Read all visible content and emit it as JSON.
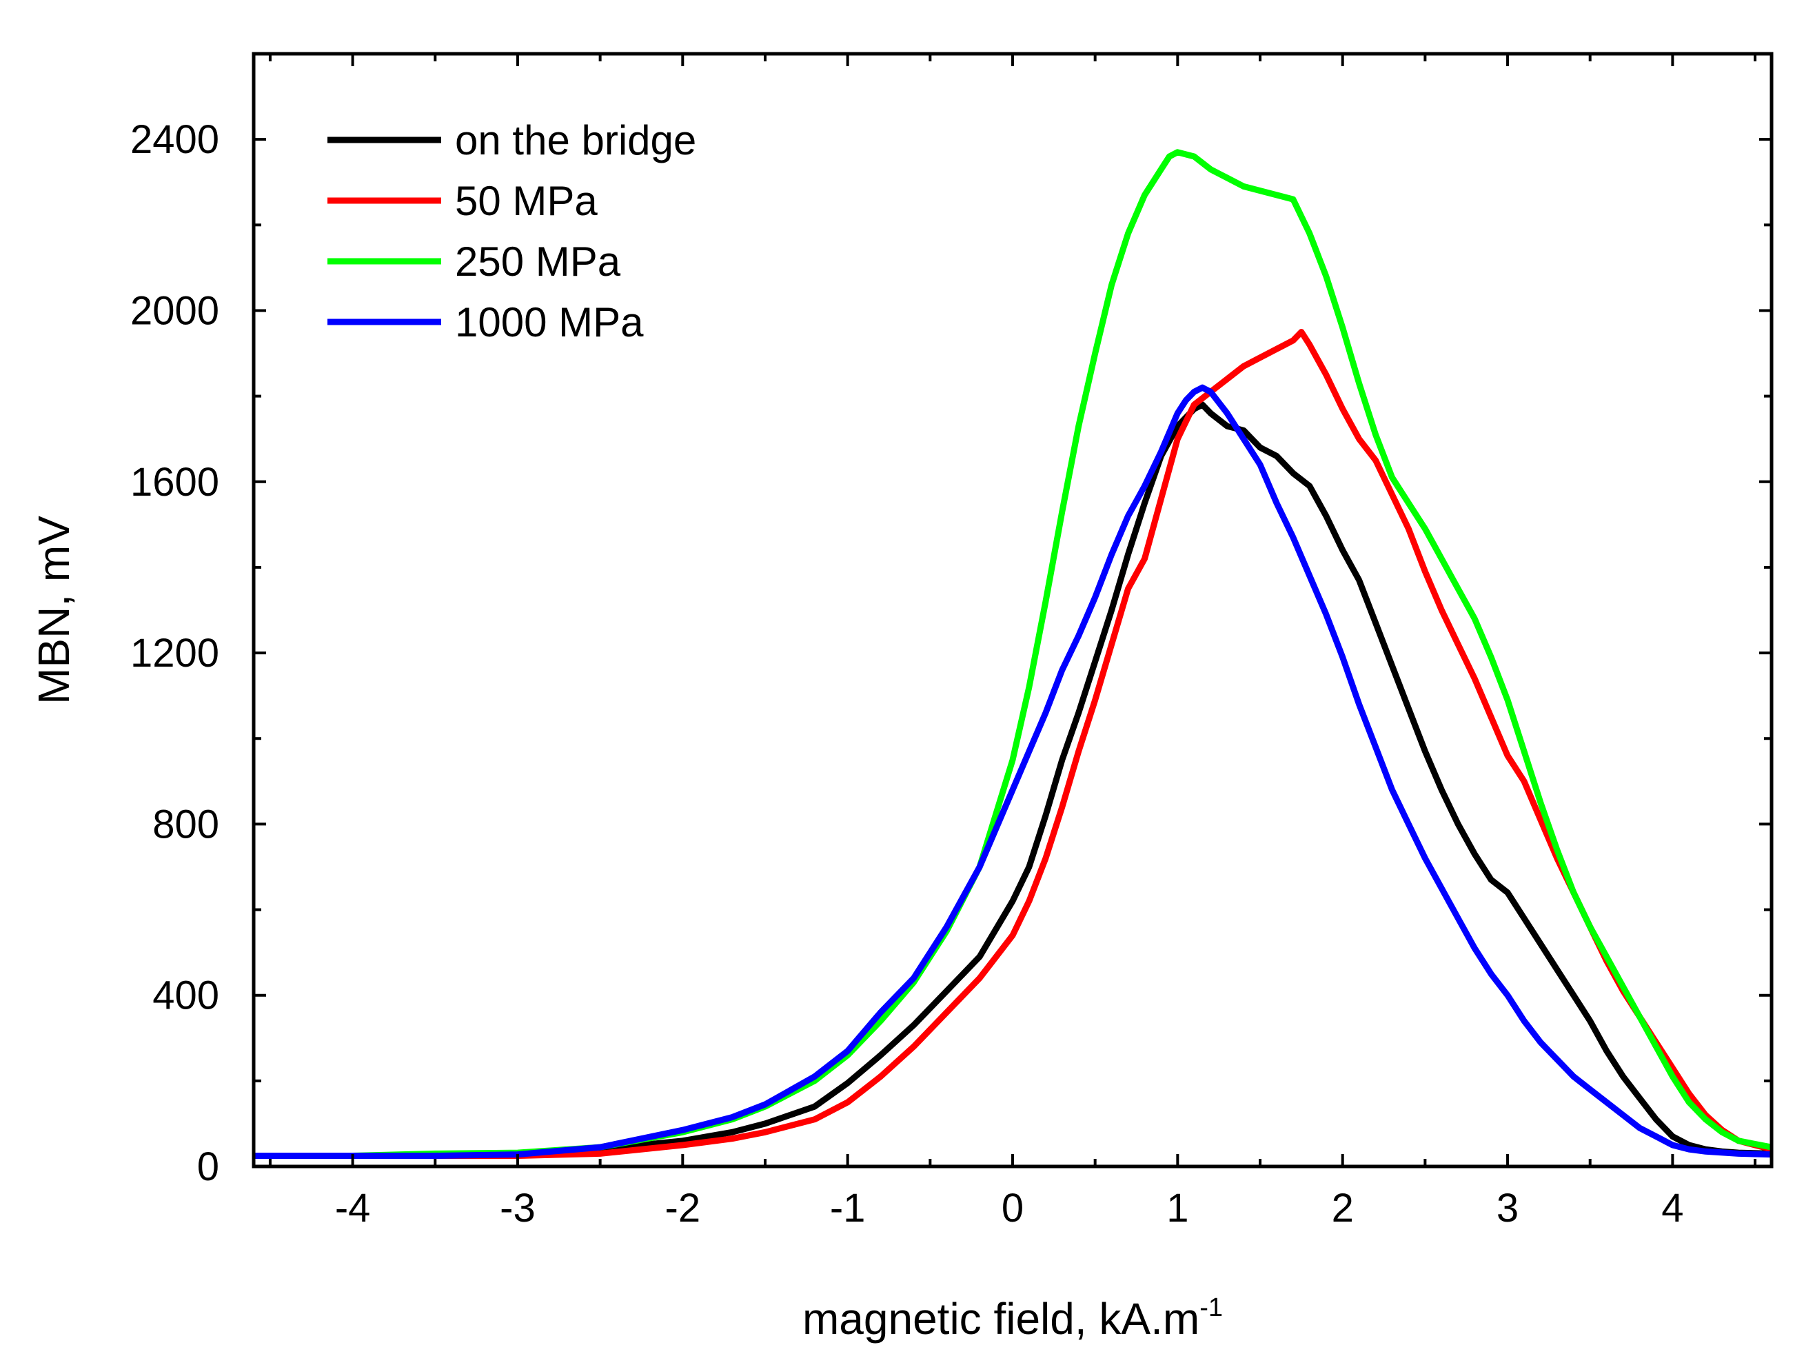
{
  "chart_data": {
    "type": "line",
    "title": "",
    "xlabel": "magnetic field, kA.m",
    "xlabel_superscript": "-1",
    "ylabel": "MBN, mV",
    "xlim": [
      -4.6,
      4.6
    ],
    "ylim": [
      0,
      2600
    ],
    "x_ticks": [
      -4,
      -3,
      -2,
      -1,
      0,
      1,
      2,
      3,
      4
    ],
    "x_tick_labels": [
      "-4",
      "-3",
      "-2",
      "-1",
      "0",
      "1",
      "2",
      "3",
      "4"
    ],
    "y_ticks": [
      0,
      400,
      800,
      1200,
      1600,
      2000,
      2400
    ],
    "y_tick_labels": [
      "0",
      "400",
      "800",
      "1200",
      "1600",
      "2000",
      "2400"
    ],
    "grid": false,
    "legend_position": "top-left",
    "series": [
      {
        "name": "on the bridge",
        "color": "#000000",
        "x": [
          -4.6,
          -4.0,
          -3.5,
          -3.0,
          -2.5,
          -2.0,
          -1.7,
          -1.5,
          -1.2,
          -1.0,
          -0.8,
          -0.6,
          -0.4,
          -0.2,
          0.0,
          0.1,
          0.2,
          0.3,
          0.4,
          0.5,
          0.6,
          0.7,
          0.8,
          0.9,
          1.0,
          1.1,
          1.15,
          1.2,
          1.3,
          1.4,
          1.5,
          1.6,
          1.7,
          1.8,
          1.9,
          2.0,
          2.1,
          2.2,
          2.3,
          2.4,
          2.5,
          2.6,
          2.7,
          2.8,
          2.9,
          3.0,
          3.1,
          3.2,
          3.3,
          3.4,
          3.5,
          3.6,
          3.7,
          3.8,
          3.9,
          4.0,
          4.1,
          4.2,
          4.3,
          4.4,
          4.6
        ],
        "values": [
          25,
          25,
          25,
          28,
          40,
          60,
          80,
          100,
          140,
          195,
          260,
          330,
          410,
          490,
          620,
          700,
          820,
          950,
          1060,
          1180,
          1300,
          1430,
          1550,
          1660,
          1730,
          1770,
          1780,
          1760,
          1730,
          1720,
          1680,
          1660,
          1620,
          1590,
          1520,
          1440,
          1370,
          1270,
          1170,
          1070,
          970,
          880,
          800,
          730,
          670,
          640,
          580,
          520,
          460,
          400,
          340,
          270,
          210,
          160,
          110,
          70,
          50,
          40,
          35,
          32,
          30
        ]
      },
      {
        "name": "50 MPa",
        "color": "#ff0000",
        "x": [
          -4.6,
          -4.0,
          -3.5,
          -3.0,
          -2.5,
          -2.0,
          -1.7,
          -1.5,
          -1.2,
          -1.0,
          -0.8,
          -0.6,
          -0.4,
          -0.2,
          0.0,
          0.1,
          0.2,
          0.3,
          0.4,
          0.5,
          0.6,
          0.7,
          0.8,
          0.9,
          1.0,
          1.1,
          1.2,
          1.3,
          1.4,
          1.5,
          1.6,
          1.7,
          1.75,
          1.8,
          1.9,
          2.0,
          2.1,
          2.2,
          2.3,
          2.4,
          2.5,
          2.6,
          2.7,
          2.8,
          2.9,
          3.0,
          3.1,
          3.2,
          3.3,
          3.4,
          3.5,
          3.6,
          3.7,
          3.8,
          3.9,
          4.0,
          4.1,
          4.2,
          4.3,
          4.4,
          4.6
        ],
        "values": [
          25,
          25,
          25,
          25,
          30,
          50,
          65,
          80,
          110,
          150,
          210,
          280,
          360,
          440,
          540,
          620,
          720,
          840,
          970,
          1090,
          1220,
          1350,
          1420,
          1560,
          1700,
          1780,
          1810,
          1840,
          1870,
          1890,
          1910,
          1930,
          1950,
          1920,
          1850,
          1770,
          1700,
          1650,
          1570,
          1490,
          1390,
          1300,
          1220,
          1140,
          1050,
          960,
          900,
          810,
          720,
          640,
          560,
          480,
          410,
          350,
          290,
          230,
          170,
          120,
          85,
          60,
          40
        ]
      },
      {
        "name": "250 MPa",
        "color": "#00ff00",
        "x": [
          -4.6,
          -4.0,
          -3.5,
          -3.0,
          -2.5,
          -2.0,
          -1.7,
          -1.5,
          -1.2,
          -1.0,
          -0.8,
          -0.6,
          -0.4,
          -0.2,
          0.0,
          0.1,
          0.2,
          0.3,
          0.4,
          0.5,
          0.6,
          0.7,
          0.8,
          0.9,
          0.95,
          1.0,
          1.1,
          1.2,
          1.3,
          1.4,
          1.5,
          1.6,
          1.7,
          1.8,
          1.9,
          2.0,
          2.1,
          2.2,
          2.3,
          2.4,
          2.5,
          2.6,
          2.7,
          2.8,
          2.9,
          3.0,
          3.1,
          3.2,
          3.3,
          3.4,
          3.5,
          3.6,
          3.7,
          3.8,
          3.9,
          4.0,
          4.1,
          4.2,
          4.3,
          4.4,
          4.6
        ],
        "values": [
          25,
          25,
          30,
          32,
          45,
          80,
          110,
          140,
          200,
          260,
          340,
          430,
          550,
          700,
          950,
          1120,
          1320,
          1530,
          1730,
          1900,
          2060,
          2180,
          2270,
          2330,
          2360,
          2370,
          2360,
          2330,
          2310,
          2290,
          2280,
          2270,
          2260,
          2180,
          2080,
          1960,
          1830,
          1710,
          1610,
          1550,
          1490,
          1420,
          1350,
          1280,
          1190,
          1090,
          970,
          850,
          740,
          640,
          560,
          490,
          420,
          350,
          280,
          210,
          150,
          110,
          80,
          60,
          45
        ]
      },
      {
        "name": "1000 MPa",
        "color": "#0000ff",
        "x": [
          -4.6,
          -4.0,
          -3.5,
          -3.0,
          -2.5,
          -2.0,
          -1.7,
          -1.5,
          -1.2,
          -1.0,
          -0.8,
          -0.6,
          -0.4,
          -0.2,
          0.0,
          0.1,
          0.2,
          0.3,
          0.4,
          0.5,
          0.6,
          0.7,
          0.8,
          0.9,
          1.0,
          1.05,
          1.1,
          1.15,
          1.2,
          1.3,
          1.4,
          1.5,
          1.6,
          1.7,
          1.8,
          1.9,
          2.0,
          2.1,
          2.2,
          2.3,
          2.4,
          2.5,
          2.6,
          2.7,
          2.8,
          2.9,
          3.0,
          3.1,
          3.2,
          3.3,
          3.4,
          3.5,
          3.6,
          3.7,
          3.8,
          3.9,
          4.0,
          4.1,
          4.2,
          4.4,
          4.6
        ],
        "values": [
          25,
          25,
          25,
          28,
          45,
          85,
          115,
          145,
          210,
          270,
          360,
          440,
          560,
          700,
          880,
          970,
          1060,
          1160,
          1240,
          1330,
          1430,
          1520,
          1590,
          1670,
          1760,
          1790,
          1810,
          1820,
          1810,
          1760,
          1700,
          1640,
          1550,
          1470,
          1380,
          1290,
          1190,
          1080,
          980,
          880,
          800,
          720,
          650,
          580,
          510,
          450,
          400,
          340,
          290,
          250,
          210,
          180,
          150,
          120,
          90,
          70,
          50,
          40,
          35,
          30,
          28
        ]
      }
    ]
  }
}
